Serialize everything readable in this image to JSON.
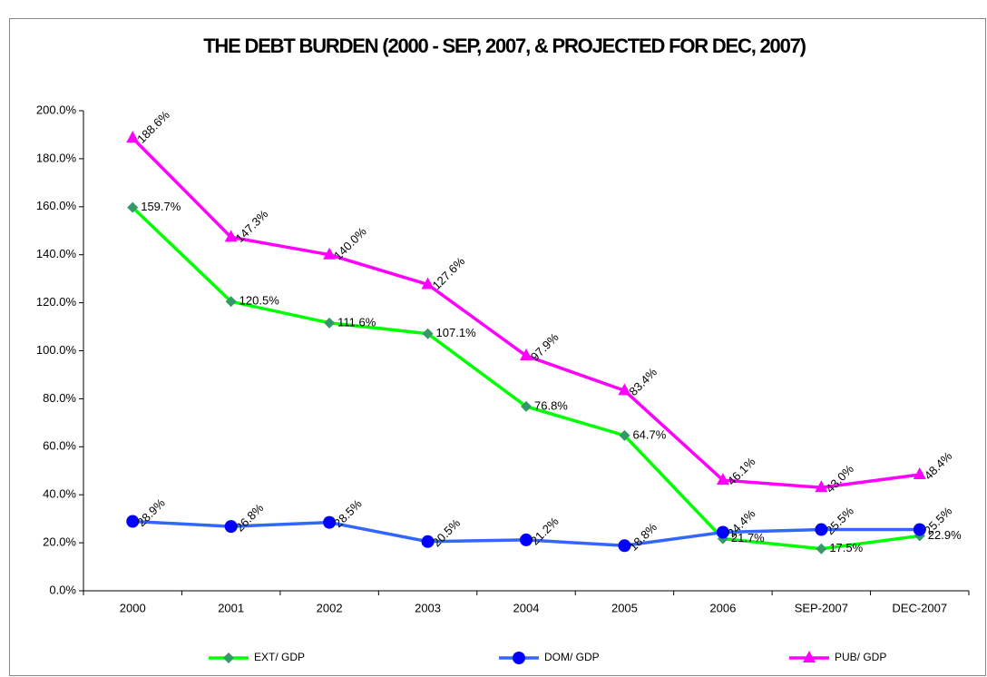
{
  "chart_data": {
    "type": "line",
    "title": "THE DEBT BURDEN (2000 - SEP, 2007, & PROJECTED FOR DEC, 2007)",
    "categories": [
      "2000",
      "2001",
      "2002",
      "2003",
      "2004",
      "2005",
      "2006",
      "SEP-2007",
      "DEC-2007"
    ],
    "series": [
      {
        "name": "EXT/ GDP",
        "color": "#00ff00",
        "marker_color": "#339966",
        "marker": "diamond",
        "values": [
          159.7,
          120.5,
          111.6,
          107.1,
          76.8,
          64.7,
          21.7,
          17.5,
          22.9
        ],
        "value_labels": [
          "159.7%",
          "120.5%",
          "111.6%",
          "107.1%",
          "76.8%",
          "64.7%",
          "21.7%",
          "17.5%",
          "22.9%"
        ]
      },
      {
        "name": "DOM/ GDP",
        "color": "#3366ff",
        "marker_color": "#0000ff",
        "marker": "circle",
        "values": [
          28.9,
          26.8,
          28.5,
          20.5,
          21.2,
          18.8,
          24.4,
          25.5,
          25.5
        ],
        "value_labels": [
          "28.9%",
          "26.8%",
          "28.5%",
          "20.5%",
          "21.2%",
          "18.8%",
          "24.4%",
          "25.5%",
          "25.5%"
        ]
      },
      {
        "name": "PUB/ GDP",
        "color": "#ff00ff",
        "marker_color": "#ff00ff",
        "marker": "triangle",
        "values": [
          188.6,
          147.3,
          140.0,
          127.6,
          97.9,
          83.4,
          46.1,
          43.0,
          48.4
        ],
        "value_labels": [
          "188.6%",
          "147.3%",
          "140.0%",
          "127.6%",
          "97.9%",
          "83.4%",
          "46.1%",
          "43.0%",
          "48.4%"
        ]
      }
    ],
    "ylim": [
      0,
      200
    ],
    "yticks": [
      {
        "value": 0,
        "label": "0.0%"
      },
      {
        "value": 20,
        "label": "20.0%"
      },
      {
        "value": 40,
        "label": "40.0%"
      },
      {
        "value": 60,
        "label": "60.0%"
      },
      {
        "value": 80,
        "label": "80.0%"
      },
      {
        "value": 100,
        "label": "100.0%"
      },
      {
        "value": 120,
        "label": "120.0%"
      },
      {
        "value": 140,
        "label": "140.0%"
      },
      {
        "value": 160,
        "label": "160.0%"
      },
      {
        "value": 180,
        "label": "180.0%"
      },
      {
        "value": 200,
        "label": "200.0%"
      }
    ],
    "grid": false,
    "legend": "bottom"
  }
}
